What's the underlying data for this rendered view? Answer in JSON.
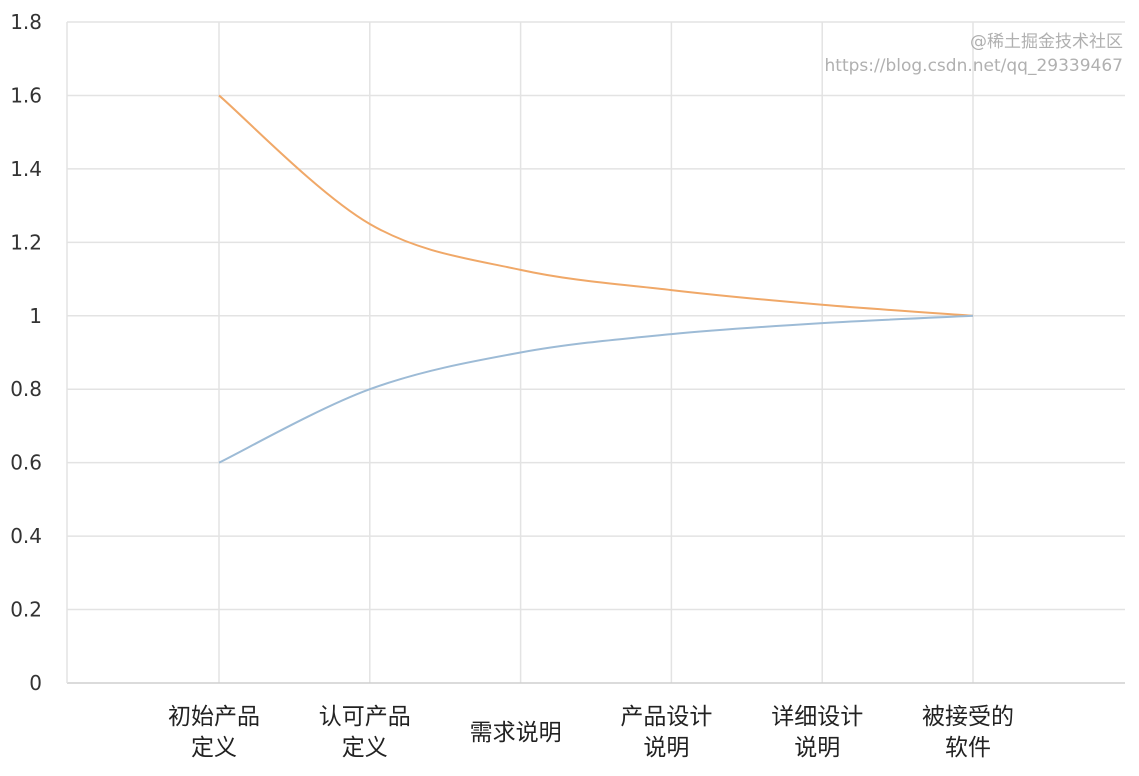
{
  "chart_data": {
    "type": "line",
    "title": "",
    "xlabel": "",
    "ylabel": "",
    "categories": [
      [
        "初始产品",
        "定义"
      ],
      [
        "认可产品",
        "定义"
      ],
      [
        "需求说明"
      ],
      [
        "产品设计",
        "说明"
      ],
      [
        "详细设计",
        "说明"
      ],
      [
        "被接受的",
        "软件"
      ]
    ],
    "ylim": [
      0,
      1.8
    ],
    "yticks": [
      0,
      0.2,
      0.4,
      0.6,
      0.8,
      1,
      1.2,
      1.4,
      1.6,
      1.8
    ],
    "grid": true,
    "smooth": true,
    "series": [
      {
        "values": [
          1.6,
          1.25,
          1.125,
          1.07,
          1.03,
          1.0
        ],
        "color": "#F0A868"
      },
      {
        "values": [
          0.6,
          0.8,
          0.9,
          0.95,
          0.98,
          1.0
        ],
        "color": "#9DBBD6"
      }
    ]
  },
  "watermarks": {
    "site": "@稀土掘金技术社区",
    "url": "https://blog.csdn.net/qq_29339467"
  }
}
